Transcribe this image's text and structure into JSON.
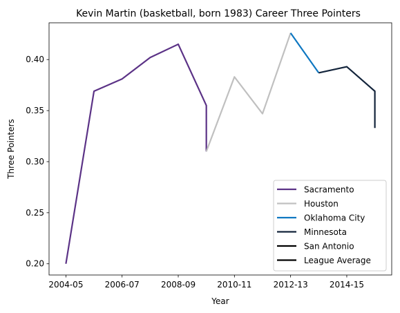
{
  "chart_data": {
    "type": "line",
    "title": "Kevin Martin (basketball, born 1983) Career Three Pointers",
    "xlabel": "Year",
    "ylabel": "Three Pointers",
    "x_ticks": [
      "2004-05",
      "2006-07",
      "2008-09",
      "2010-11",
      "2012-13",
      "2014-15"
    ],
    "x_tick_index": [
      0,
      2,
      4,
      6,
      8,
      10
    ],
    "xlim": [
      -0.6,
      11.6
    ],
    "ylim": [
      0.189,
      0.436
    ],
    "y_ticks": [
      0.2,
      0.25,
      0.3,
      0.35,
      0.4
    ],
    "y_tick_labels": [
      "0.20",
      "0.25",
      "0.30",
      "0.35",
      "0.40"
    ],
    "grid": false,
    "legend_position": "bottom-right",
    "series": [
      {
        "name": "Sacramento",
        "color": "#5b3286",
        "points": [
          [
            0,
            0.2
          ],
          [
            1,
            0.369
          ],
          [
            2,
            0.381
          ],
          [
            3,
            0.402
          ],
          [
            4,
            0.415
          ],
          [
            5,
            0.355
          ],
          [
            5,
            0.31
          ]
        ]
      },
      {
        "name": "Houston",
        "color": "#c0c0c0",
        "points": [
          [
            5,
            0.31
          ],
          [
            6,
            0.383
          ],
          [
            7,
            0.347
          ],
          [
            8,
            0.426
          ]
        ]
      },
      {
        "name": "Oklahoma City",
        "color": "#0e77c1",
        "points": [
          [
            8,
            0.426
          ],
          [
            9,
            0.387
          ]
        ]
      },
      {
        "name": "Minnesota",
        "color": "#13243b",
        "points": [
          [
            9,
            0.387
          ],
          [
            10,
            0.393
          ],
          [
            11,
            0.369
          ],
          [
            11,
            0.333
          ]
        ]
      },
      {
        "name": "San Antonio",
        "color": "#000000",
        "points": []
      },
      {
        "name": "League Average",
        "color": "#000000",
        "points": []
      }
    ]
  }
}
